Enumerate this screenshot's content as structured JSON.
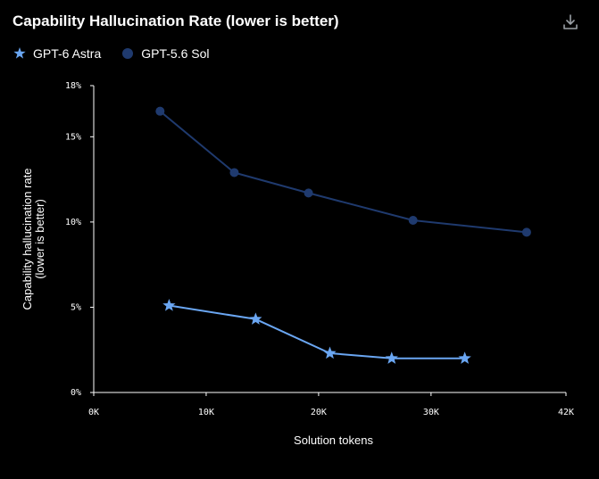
{
  "header": {
    "title": "Capability Hallucination Rate (lower is better)",
    "download_icon": "download-icon"
  },
  "colors": {
    "background": "#000000",
    "astra": "#6aa6f2",
    "sol": "#1f3a6e",
    "axis": "#ffffff"
  },
  "chart_data": {
    "type": "line",
    "title": "Capability Hallucination Rate (lower is better)",
    "xlabel": "Solution tokens",
    "ylabel_lines": [
      "Capability hallucination rate",
      "(lower is better)"
    ],
    "xlim": [
      0,
      42000
    ],
    "ylim": [
      0,
      18
    ],
    "x_ticks": [
      {
        "value": 0,
        "label": "0K"
      },
      {
        "value": 10000,
        "label": "10K"
      },
      {
        "value": 20000,
        "label": "20K"
      },
      {
        "value": 30000,
        "label": "30K"
      },
      {
        "value": 42000,
        "label": "42K"
      }
    ],
    "y_ticks": [
      {
        "value": 0,
        "label": "0%"
      },
      {
        "value": 5,
        "label": "5%"
      },
      {
        "value": 10,
        "label": "10%"
      },
      {
        "value": 15,
        "label": "15%"
      },
      {
        "value": 18,
        "label": "18%"
      }
    ],
    "legend_position": "top-left",
    "grid": false,
    "series": [
      {
        "name": "GPT-6 Astra",
        "marker": "star",
        "color": "#6aa6f2",
        "points": [
          {
            "x": 6700,
            "y": 5.1
          },
          {
            "x": 14400,
            "y": 4.3
          },
          {
            "x": 21000,
            "y": 2.3
          },
          {
            "x": 26500,
            "y": 2.0
          },
          {
            "x": 33000,
            "y": 2.0
          }
        ]
      },
      {
        "name": "GPT-5.6 Sol",
        "marker": "circle",
        "color": "#1f3a6e",
        "points": [
          {
            "x": 5900,
            "y": 16.5
          },
          {
            "x": 12500,
            "y": 12.9
          },
          {
            "x": 19100,
            "y": 11.7
          },
          {
            "x": 28400,
            "y": 10.1
          },
          {
            "x": 38500,
            "y": 9.4
          }
        ]
      }
    ]
  }
}
